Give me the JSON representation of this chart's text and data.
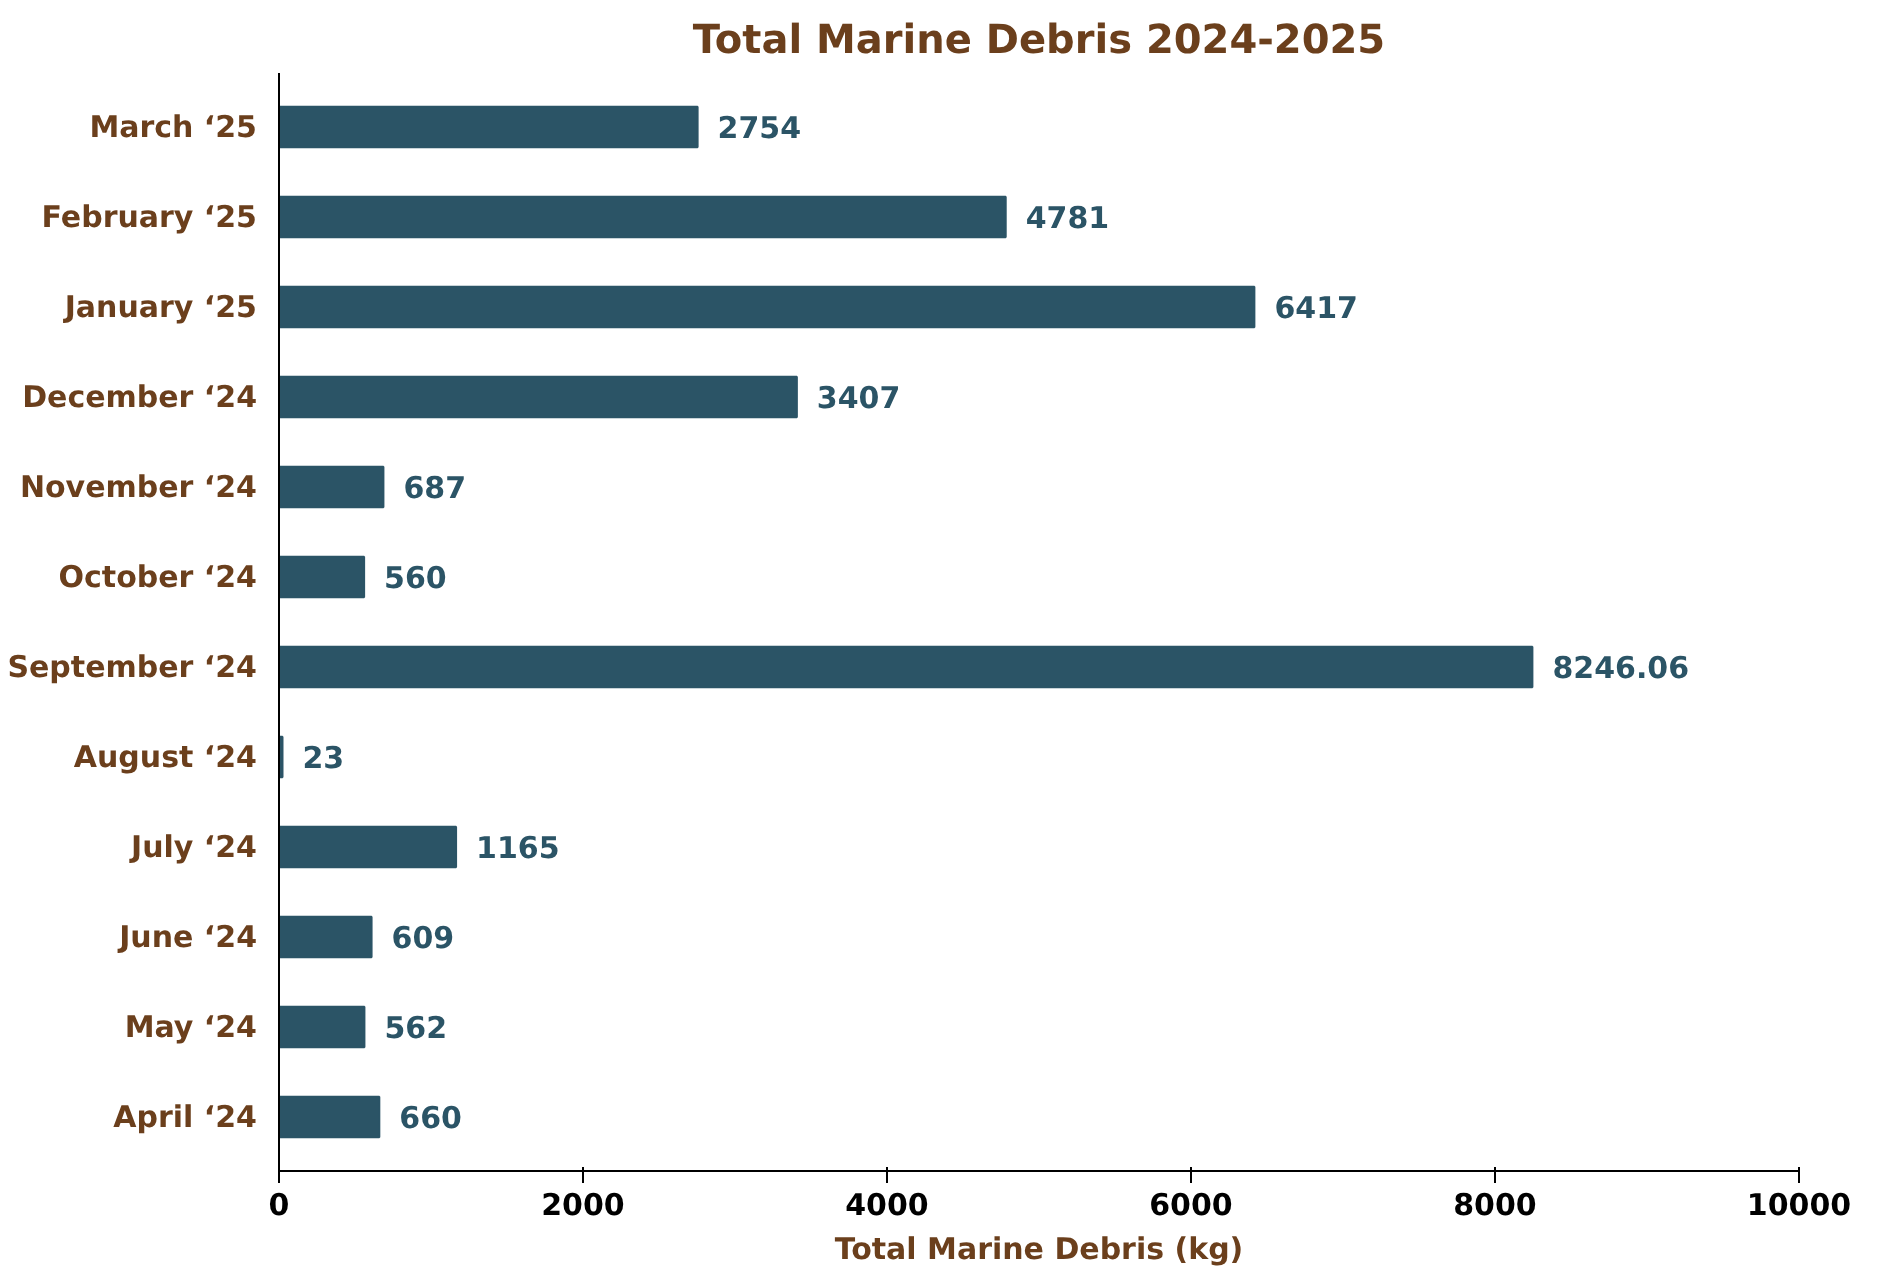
{
  "chart_data": {
    "type": "bar",
    "orientation": "horizontal",
    "title": "Total Marine Debris 2024-2025",
    "xlabel": "Total Marine Debris (kg)",
    "categories": [
      "March ‘25",
      "February ‘25",
      "January ‘25",
      "December ‘24",
      "November ‘24",
      "October ‘24",
      "September ‘24",
      "August ‘24",
      "July ‘24",
      "June ‘24",
      "May ‘24",
      "April ‘24"
    ],
    "values": [
      2754,
      4781,
      6417,
      3407,
      687,
      560,
      8246.06,
      23,
      1165,
      609,
      562,
      660
    ],
    "color": "#2b5466",
    "xlim": [
      0,
      10000
    ],
    "xticks": [
      0,
      2000,
      4000,
      6000,
      8000,
      10000
    ],
    "data_labels": true,
    "grid": false
  }
}
